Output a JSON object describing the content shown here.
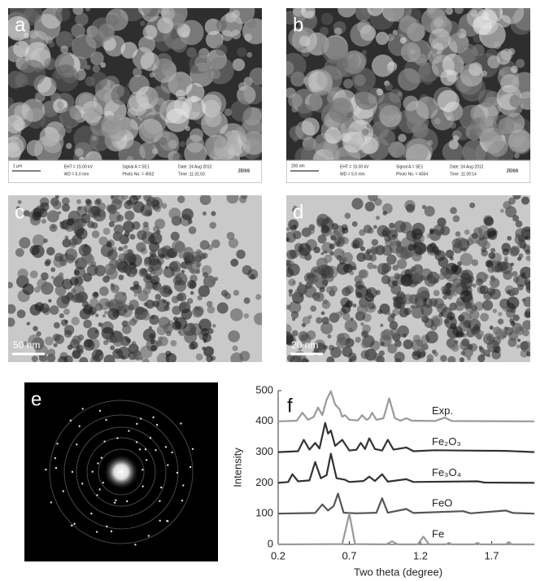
{
  "panels": [
    {
      "label": "a",
      "scale_bar": "1 µm",
      "eht": "EHT = 15.00 kV",
      "wd": "WD = 5.0 mm",
      "signal": "Signal A = SE1",
      "photo": "Photo No. = 4552",
      "date": "Date :24 Aug 2012",
      "time": "Time :11:31:03",
      "brand": "ZEISS"
    },
    {
      "label": "b",
      "scale_bar": "200 nm",
      "eht": "EHT = 15.00 kV",
      "wd": "WD = 5.0 mm",
      "signal": "Signal A = SE1",
      "photo": "Photo No. = 4554",
      "date": "Date :24 Aug 2012",
      "time": "Time :11:39:14",
      "brand": "ZEISS"
    },
    {
      "label": "c",
      "scale_bar": "50 nm"
    },
    {
      "label": "d",
      "scale_bar": "20 nm"
    },
    {
      "label": "e"
    }
  ],
  "chart_data": {
    "type": "line",
    "label": "f",
    "x_label": "Two theta (degree)",
    "y_label": "Intensity",
    "xlim": [
      0.2,
      2.0
    ],
    "xticks": [
      0.2,
      0.7,
      1.2,
      1.7
    ],
    "ylim": [
      0,
      500
    ],
    "yticks": [
      0,
      100,
      200,
      300,
      400,
      500
    ],
    "series": [
      {
        "name": "Exp.",
        "color": "#9a9a9a",
        "x": [
          0.2,
          0.33,
          0.37,
          0.41,
          0.45,
          0.48,
          0.51,
          0.54,
          0.57,
          0.6,
          0.63,
          0.65,
          0.67,
          0.7,
          0.76,
          0.79,
          0.82,
          0.84,
          0.86,
          0.89,
          0.94,
          0.98,
          1.02,
          1.06,
          1.1,
          1.14,
          1.3,
          1.37,
          1.42,
          2.0
        ],
        "values": [
          400,
          402,
          428,
          405,
          415,
          445,
          420,
          470,
          498,
          455,
          440,
          415,
          420,
          405,
          403,
          420,
          405,
          410,
          428,
          405,
          410,
          475,
          410,
          402,
          410,
          402,
          401,
          412,
          401,
          400
        ]
      },
      {
        "name": "Fe₂O₃",
        "color": "#333333",
        "x": [
          0.2,
          0.34,
          0.38,
          0.42,
          0.46,
          0.49,
          0.53,
          0.55,
          0.57,
          0.6,
          0.65,
          0.7,
          0.75,
          0.78,
          0.81,
          0.84,
          0.88,
          0.93,
          0.97,
          1.01,
          1.1,
          1.15,
          1.3,
          1.5,
          1.8,
          2.0
        ],
        "values": [
          300,
          303,
          340,
          308,
          330,
          312,
          395,
          360,
          370,
          320,
          340,
          305,
          308,
          330,
          310,
          345,
          310,
          305,
          340,
          308,
          315,
          303,
          306,
          305,
          304,
          300
        ]
      },
      {
        "name": "Fe₃O₄",
        "color": "#333333",
        "x": [
          0.2,
          0.27,
          0.3,
          0.34,
          0.42,
          0.46,
          0.5,
          0.54,
          0.57,
          0.61,
          0.67,
          0.7,
          0.8,
          0.84,
          0.88,
          0.93,
          0.97,
          1.1,
          1.15,
          1.6,
          1.65,
          2.0
        ],
        "values": [
          200,
          203,
          228,
          205,
          208,
          268,
          215,
          225,
          295,
          215,
          210,
          203,
          206,
          220,
          206,
          228,
          204,
          212,
          203,
          205,
          201,
          200
        ]
      },
      {
        "name": "FeO",
        "color": "#555555",
        "x": [
          0.2,
          0.46,
          0.51,
          0.55,
          0.59,
          0.62,
          0.66,
          0.75,
          0.89,
          0.93,
          0.97,
          1.1,
          1.15,
          1.5,
          1.55,
          1.8,
          1.85,
          2.0
        ],
        "values": [
          100,
          102,
          130,
          110,
          125,
          165,
          103,
          101,
          103,
          150,
          103,
          115,
          102,
          108,
          101,
          110,
          102,
          100
        ]
      },
      {
        "name": "Fe",
        "color": "#999999",
        "x": [
          0.2,
          0.65,
          0.7,
          0.74,
          0.96,
          1.0,
          1.04,
          1.18,
          1.22,
          1.26,
          1.38,
          1.4,
          1.42,
          1.58,
          1.6,
          1.62,
          1.8,
          1.82,
          1.84,
          2.0
        ],
        "values": [
          0,
          1,
          100,
          1,
          0,
          10,
          0,
          0,
          25,
          0,
          0,
          5,
          0,
          0,
          5,
          0,
          0,
          8,
          0,
          0
        ]
      }
    ]
  }
}
